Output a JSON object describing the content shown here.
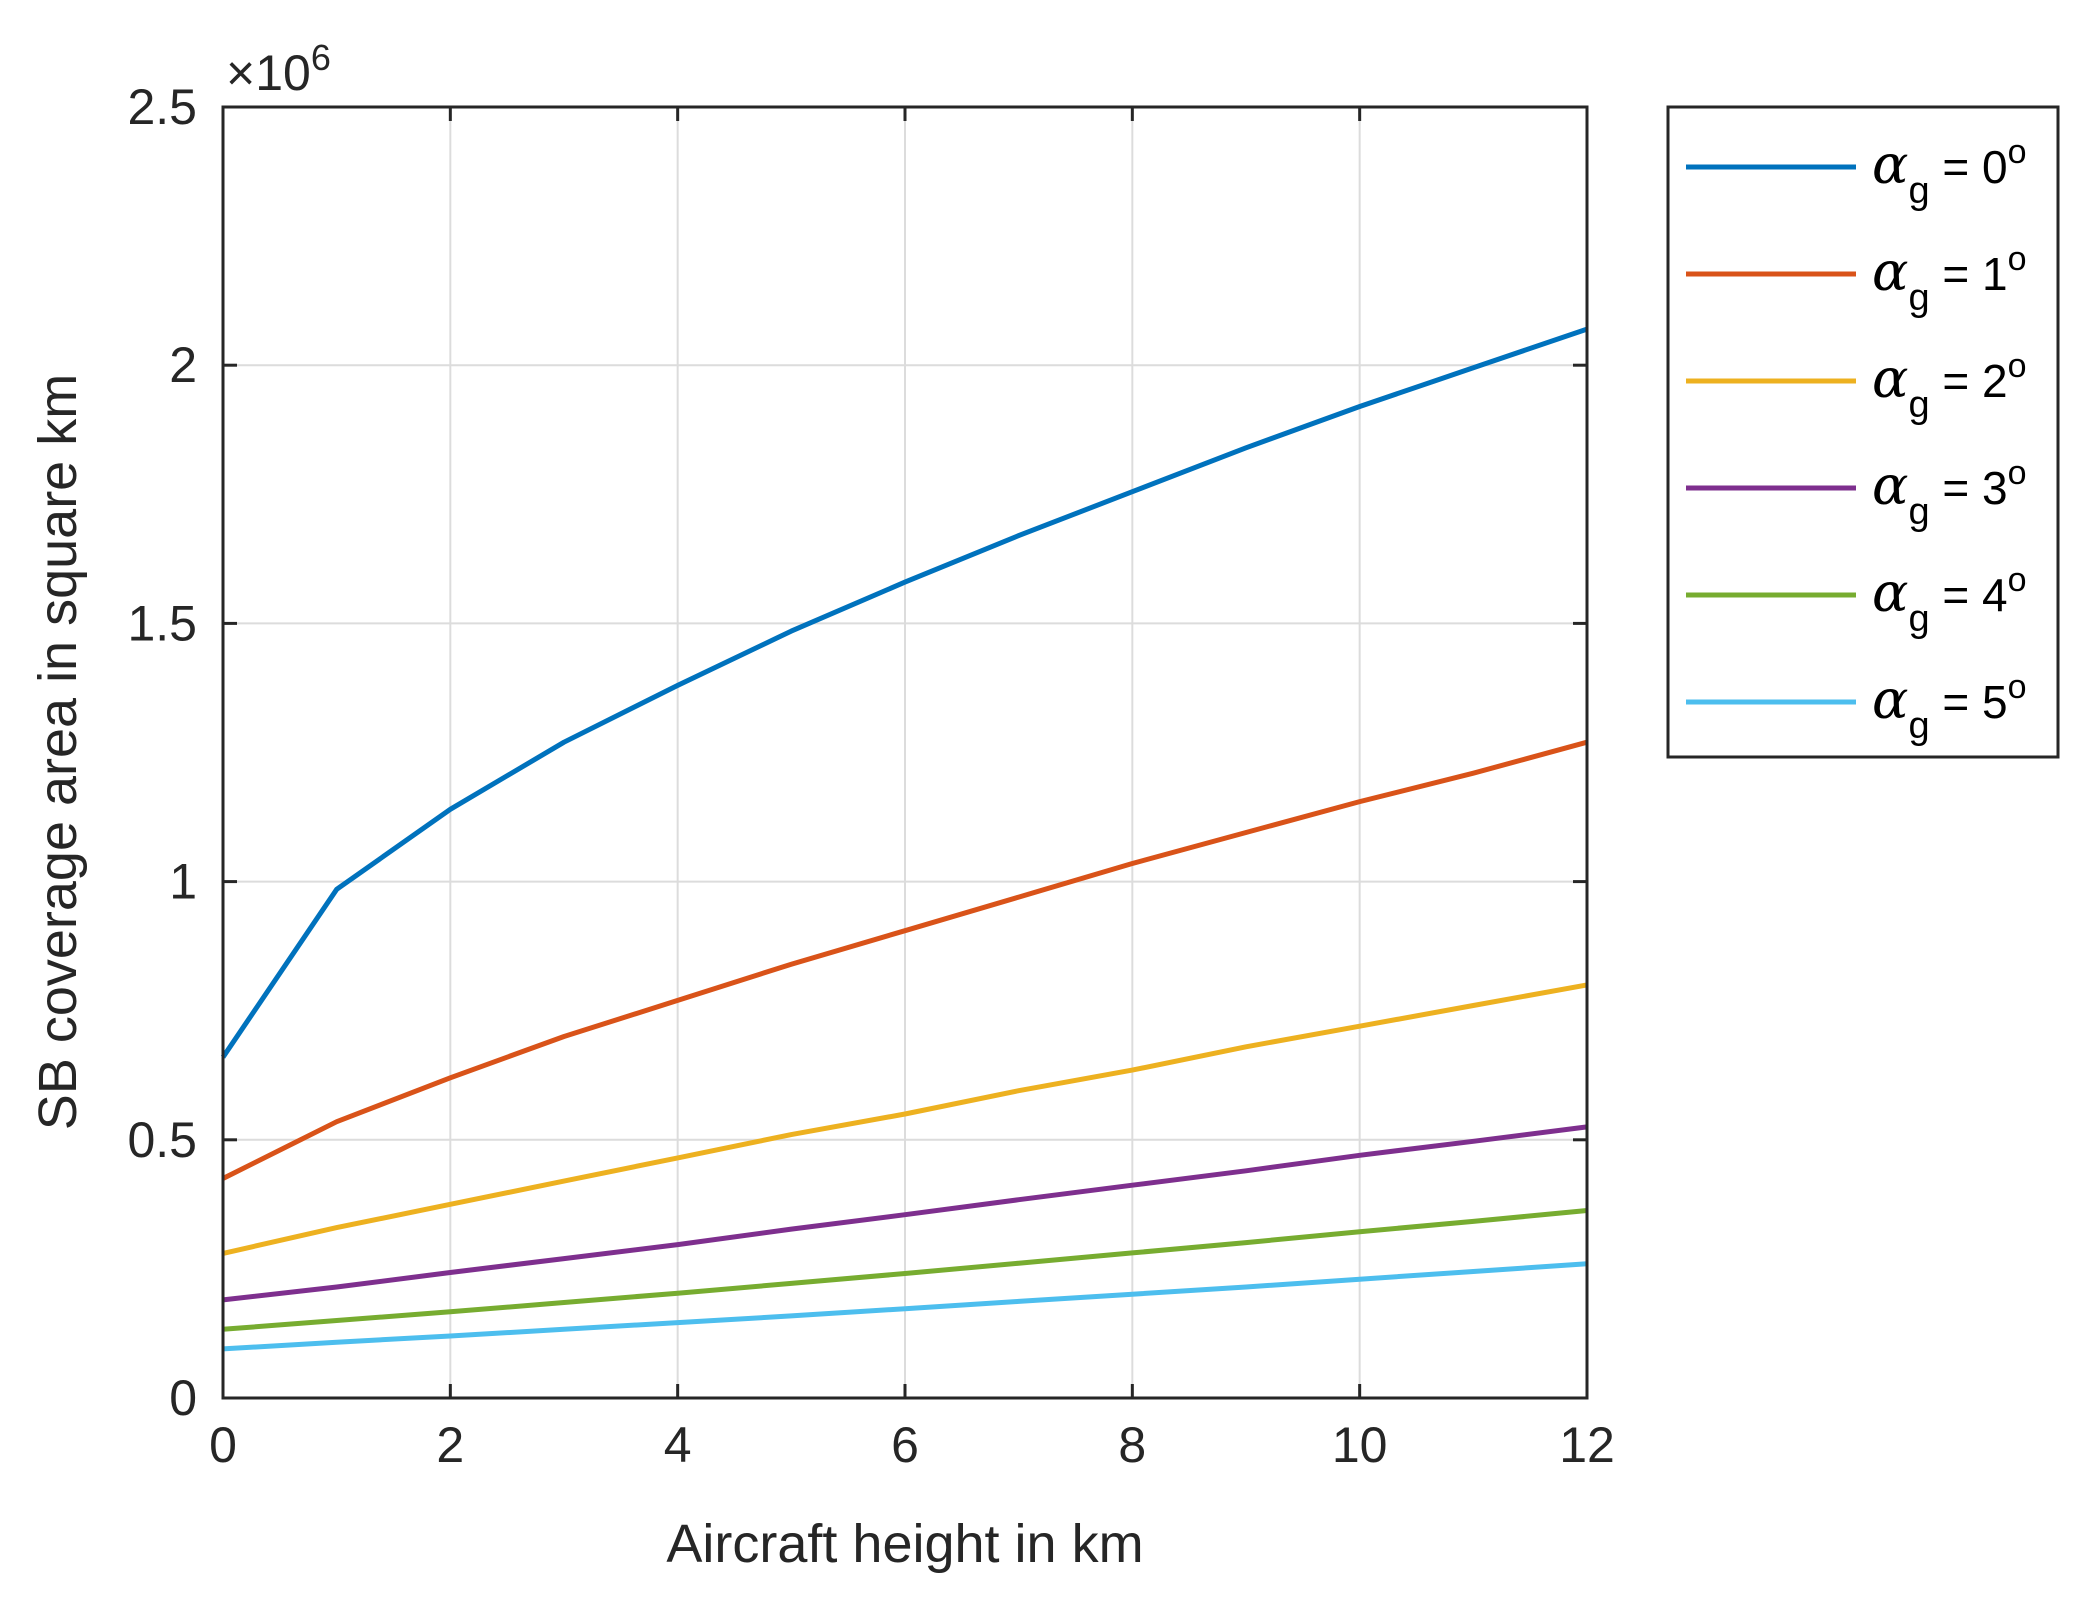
{
  "chart_data": {
    "type": "line",
    "title": "",
    "xlabel": "Aircraft height in km",
    "ylabel": "SB coverage area in square km",
    "xlim": [
      0,
      12
    ],
    "ylim": [
      0,
      2.5
    ],
    "y_exponent_label": "×10",
    "y_exponent_power": "6",
    "xticks": [
      0,
      2,
      4,
      6,
      8,
      10,
      12
    ],
    "xtick_labels": [
      "0",
      "2",
      "4",
      "6",
      "8",
      "10",
      "12"
    ],
    "yticks": [
      0,
      0.5,
      1,
      1.5,
      2,
      2.5
    ],
    "ytick_labels": [
      "0",
      "0.5",
      "1",
      "1.5",
      "2",
      "2.5"
    ],
    "grid": true,
    "legend_position": "outside-right",
    "x": [
      0,
      1,
      2,
      3,
      4,
      5,
      6,
      7,
      8,
      9,
      10,
      11,
      12
    ],
    "series": [
      {
        "name": "αg = 0°",
        "symbol": "α",
        "sub": "g",
        "equals": " = ",
        "value_text": "0",
        "deg": "o",
        "color": "#0072BD",
        "values": [
          0.66,
          0.985,
          1.14,
          1.27,
          1.38,
          1.485,
          1.58,
          1.67,
          1.755,
          1.84,
          1.92,
          1.995,
          2.07
        ]
      },
      {
        "name": "αg = 1°",
        "symbol": "α",
        "sub": "g",
        "equals": " = ",
        "value_text": "1",
        "deg": "o",
        "color": "#D95319",
        "values": [
          0.425,
          0.535,
          0.62,
          0.7,
          0.77,
          0.84,
          0.905,
          0.97,
          1.035,
          1.095,
          1.155,
          1.21,
          1.27
        ]
      },
      {
        "name": "αg = 2°",
        "symbol": "α",
        "sub": "g",
        "equals": " = ",
        "value_text": "2",
        "deg": "o",
        "color": "#EDB120",
        "values": [
          0.28,
          0.33,
          0.375,
          0.42,
          0.465,
          0.51,
          0.55,
          0.595,
          0.635,
          0.68,
          0.72,
          0.76,
          0.8
        ]
      },
      {
        "name": "αg = 3°",
        "symbol": "α",
        "sub": "g",
        "equals": " = ",
        "value_text": "3",
        "deg": "o",
        "color": "#7E2F8E",
        "values": [
          0.19,
          0.215,
          0.243,
          0.27,
          0.297,
          0.327,
          0.355,
          0.384,
          0.412,
          0.44,
          0.47,
          0.497,
          0.525
        ]
      },
      {
        "name": "αg = 4°",
        "symbol": "α",
        "sub": "g",
        "equals": " = ",
        "value_text": "4",
        "deg": "o",
        "color": "#77AC30",
        "values": [
          0.133,
          0.15,
          0.167,
          0.185,
          0.203,
          0.222,
          0.241,
          0.261,
          0.281,
          0.301,
          0.322,
          0.342,
          0.363
        ]
      },
      {
        "name": "αg = 5°",
        "symbol": "α",
        "sub": "g",
        "equals": " = ",
        "value_text": "5",
        "deg": "o",
        "color": "#4DBEEE",
        "values": [
          0.095,
          0.108,
          0.12,
          0.133,
          0.146,
          0.159,
          0.173,
          0.187,
          0.201,
          0.215,
          0.23,
          0.245,
          0.26
        ]
      }
    ]
  }
}
